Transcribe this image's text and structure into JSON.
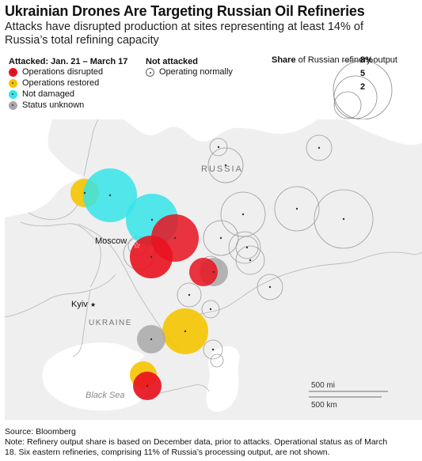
{
  "title": "Ukrainian Drones Are Targeting Russian Oil Refineries",
  "subtitle": "Attacks have disrupted production at sites representing at least 14% of Russia’s total refining capacity",
  "legend": {
    "attacked_heading": "Attacked: Jan. 21 – March 17",
    "attacked_items": [
      {
        "label": "Operations disrupted",
        "color": "#e8121f"
      },
      {
        "label": "Operations restored",
        "color": "#f5c400"
      },
      {
        "label": "Not damaged",
        "color": "#35e4e8"
      },
      {
        "label": "Status unknown",
        "color": "#a8a8a8"
      }
    ],
    "not_attacked_heading": "Not attacked",
    "not_attacked_item": "Operating normally",
    "size_title_bold": "Share",
    "size_title_rest": " of Russian refinery output",
    "size_values": [
      "8%",
      "5",
      "2"
    ]
  },
  "map": {
    "land_color": "#efefef",
    "water_color": "#ffffff",
    "labels": {
      "russia": "RUSSIA",
      "ukraine": "UKRAINE",
      "black_sea": "Black Sea",
      "moscow": "Moscow",
      "kyiv": "Kyiv"
    },
    "scale": {
      "mi": "500 mi",
      "km": "500 km"
    }
  },
  "footer": {
    "source": "Source: Bloomberg",
    "note": "Note: Refinery output share is based on December data, prior to attacks. Operational status as of March 18. Six eastern refineries, comprising 11% of Russia’s processing output, are not shown."
  }
}
